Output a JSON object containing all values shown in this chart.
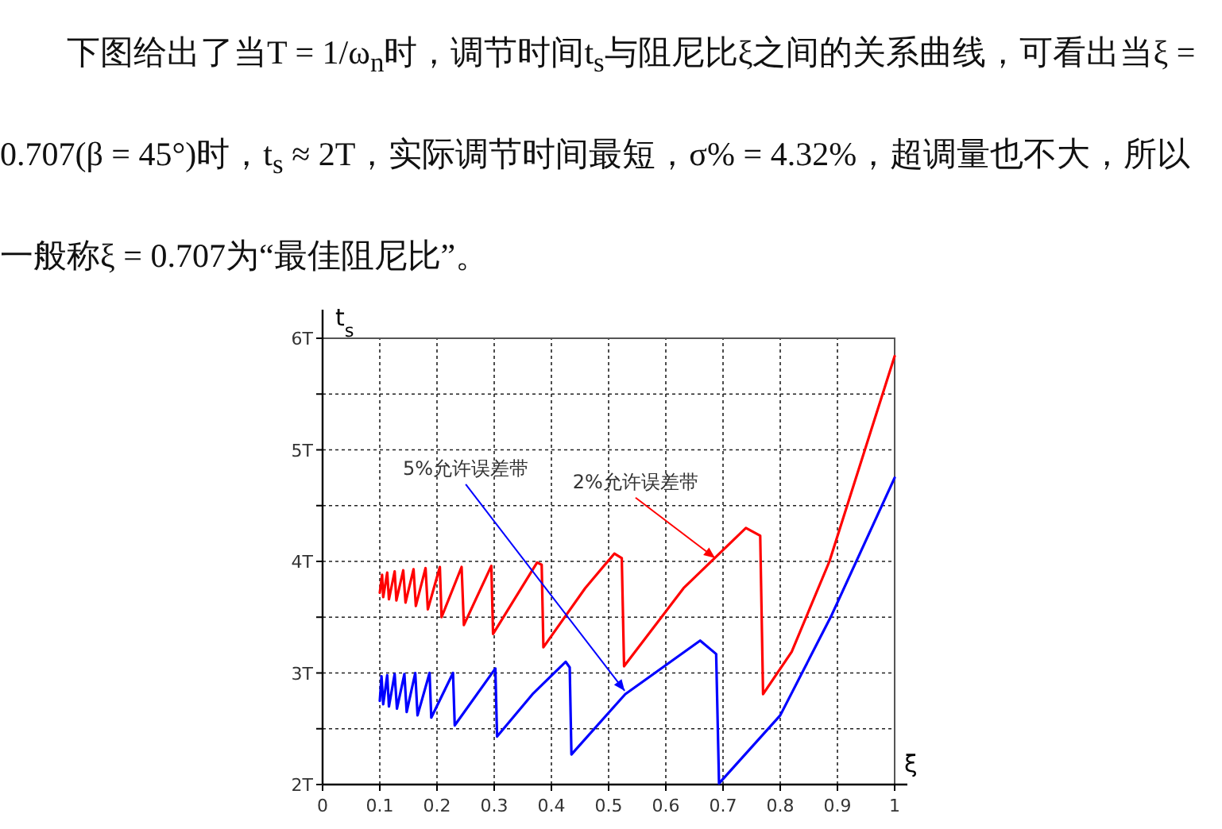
{
  "chart_data": {
    "type": "line",
    "xlabel": "ξ",
    "ylabel": "t$_{s}$",
    "annotations": [
      "下图给出了当T = 1/ω$_{n}$时，调节时间t$_{s}$与阻尼比ξ之间的关系曲线，可看出当ξ = 0.707(β = 45°)时，t$_{s}$ ≈ 2T，实际调节时间最短，σ% = 4.32%，超调量也不大，所以一般称ξ = 0.707为“最佳阻尼比”。",
      {
        "text": "5%允许误差带",
        "x": 0.528,
        "y": 2.84
      },
      {
        "text": "2%允许误差带",
        "x": 0.686,
        "y": 4.03
      }
    ],
    "series": [
      {
        "color": "#ff0000",
        "x": [
          0.1,
          0.104,
          0.106,
          0.113,
          0.116,
          0.126,
          0.129,
          0.141,
          0.145,
          0.159,
          0.163,
          0.18,
          0.184,
          0.205,
          0.208,
          0.243,
          0.247,
          0.295,
          0.298,
          0.375,
          0.383,
          0.386,
          0.459,
          0.51,
          0.523,
          0.527,
          0.631,
          0.74,
          0.765,
          0.77,
          0.82,
          0.886,
          1.0
        ],
        "values": [
          3.72,
          3.88,
          3.68,
          3.9,
          3.66,
          3.91,
          3.65,
          3.92,
          3.63,
          3.93,
          3.6,
          3.94,
          3.57,
          3.95,
          3.5,
          3.95,
          3.43,
          3.96,
          3.35,
          3.99,
          3.97,
          3.23,
          3.76,
          4.07,
          4.03,
          3.06,
          3.76,
          4.3,
          4.23,
          2.81,
          3.19,
          4.0,
          5.84
        ]
      },
      {
        "color": "#0000ff",
        "x": [
          0.1,
          0.103,
          0.106,
          0.113,
          0.116,
          0.126,
          0.13,
          0.143,
          0.147,
          0.162,
          0.166,
          0.187,
          0.19,
          0.228,
          0.231,
          0.302,
          0.305,
          0.367,
          0.425,
          0.432,
          0.435,
          0.529,
          0.66,
          0.688,
          0.693,
          0.8,
          0.89,
          1.0
        ],
        "values": [
          2.75,
          2.97,
          2.72,
          2.98,
          2.7,
          2.99,
          2.68,
          2.99,
          2.65,
          3.0,
          2.62,
          3.0,
          2.6,
          3.0,
          2.53,
          3.04,
          2.43,
          2.81,
          3.1,
          3.05,
          2.27,
          2.81,
          3.29,
          3.17,
          2.01,
          2.62,
          3.52,
          4.75
        ]
      }
    ],
    "xlim": [
      0,
      1
    ],
    "ylim": [
      2,
      6
    ],
    "xticks": [
      0,
      0.1,
      0.2,
      0.3,
      0.4,
      0.5,
      0.6,
      0.7,
      0.8,
      0.9,
      1
    ],
    "yticks": [
      {
        "value": 2,
        "label": "2T"
      },
      {
        "value": 2.5,
        "label": null
      },
      {
        "value": 3,
        "label": "3T"
      },
      {
        "value": 3.5,
        "label": null
      },
      {
        "value": 4,
        "label": "4T"
      },
      {
        "value": 4.5,
        "label": null
      },
      {
        "value": 5,
        "label": "5T"
      },
      {
        "value": 5.5,
        "label": null
      },
      {
        "value": 6,
        "label": "6T"
      }
    ],
    "grid": true,
    "line_style": "solid",
    "marker": "none"
  }
}
